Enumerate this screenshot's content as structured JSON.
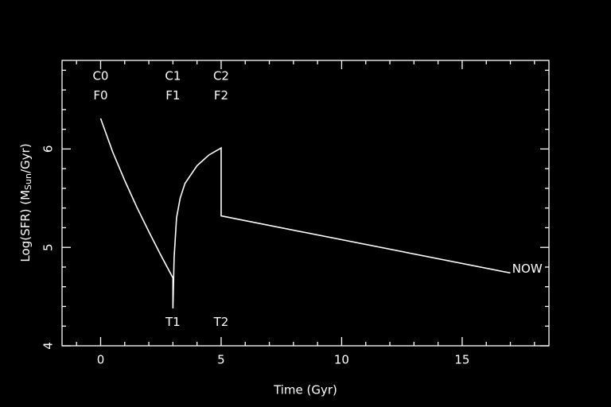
{
  "chart_data": {
    "type": "line",
    "xlabel": "Time (Gyr)",
    "ylabel": {
      "prefix": "Log(SFR) (M",
      "sub": "Sun",
      "suffix": "/Gyr)"
    },
    "x": [
      0,
      0.5,
      1,
      1.5,
      2,
      2.5,
      3,
      3,
      3.05,
      3.15,
      3.3,
      3.5,
      4,
      4.5,
      5,
      5,
      17
    ],
    "series": [
      {
        "color": "#ffffff",
        "values": [
          6.31,
          5.97,
          5.68,
          5.41,
          5.16,
          4.92,
          4.69,
          4.38,
          4.9,
          5.3,
          5.5,
          5.65,
          5.83,
          5.94,
          6.01,
          5.32,
          4.74
        ]
      }
    ],
    "xlim": [
      -1.6,
      18.6
    ],
    "ylim": [
      4,
      6.9
    ],
    "xticks": [
      0,
      5,
      10,
      15
    ],
    "yticks": [
      4,
      5,
      6
    ],
    "xminorticks": [
      -1,
      1,
      2,
      3,
      4,
      6,
      7,
      8,
      9,
      11,
      12,
      13,
      14,
      16,
      17,
      18
    ],
    "yminorticks": [
      4.2,
      4.4,
      4.6,
      4.8,
      5.2,
      5.4,
      5.6,
      5.8,
      6.2,
      6.4,
      6.6,
      6.8
    ],
    "annotations": [
      {
        "text": "C0",
        "x": 0,
        "y": 6.74
      },
      {
        "text": "F0",
        "x": 0,
        "y": 6.54
      },
      {
        "text": "C1",
        "x": 3,
        "y": 6.74
      },
      {
        "text": "F1",
        "x": 3,
        "y": 6.54
      },
      {
        "text": "C2",
        "x": 5,
        "y": 6.74
      },
      {
        "text": "F2",
        "x": 5,
        "y": 6.54
      },
      {
        "text": "T1",
        "x": 3,
        "y": 4.24
      },
      {
        "text": "T2",
        "x": 5,
        "y": 4.24
      },
      {
        "text": "NOW",
        "x": 17.7,
        "y": 4.78
      }
    ]
  }
}
